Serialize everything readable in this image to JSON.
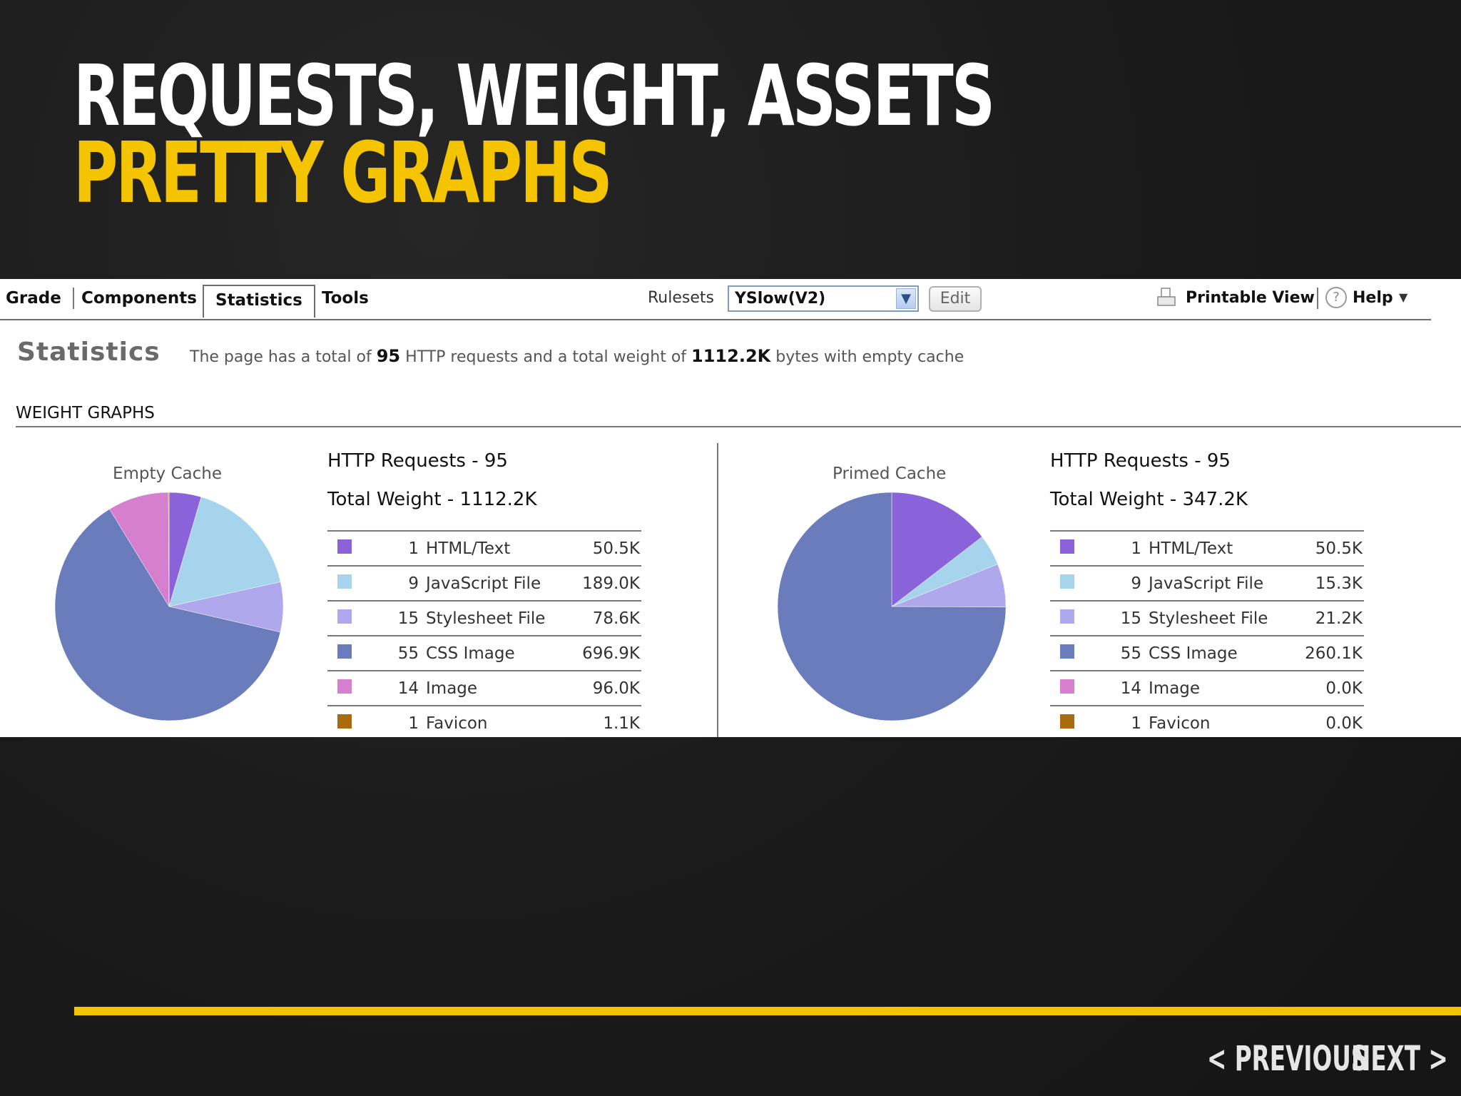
{
  "slide": {
    "title_line1": "REQUESTS, WEIGHT, ASSETS",
    "title_line2": "PRETTY GRAPHS",
    "accent_color": "#f5c400",
    "nav_previous": "PREVIOUS",
    "nav_next": "NEXT"
  },
  "tabs": [
    {
      "label": "Grade",
      "active": false
    },
    {
      "label": "Components",
      "active": false
    },
    {
      "label": "Statistics",
      "active": true
    },
    {
      "label": "Tools",
      "active": false
    }
  ],
  "toolbar": {
    "rulesets_label": "Rulesets",
    "ruleset_value": "YSlow(V2)",
    "edit_label": "Edit",
    "printable_view": "Printable View",
    "help": "Help"
  },
  "statistics": {
    "heading": "Statistics",
    "summary_prefix": "The page has a total of",
    "requests": "95",
    "summary_mid": "HTTP requests and a total weight of",
    "weight": "1112.2K",
    "summary_suffix": "bytes with empty cache",
    "section": "WEIGHT GRAPHS"
  },
  "chart_data": [
    {
      "type": "pie",
      "title": "Empty Cache",
      "http_requests_label": "HTTP Requests - 95",
      "total_weight_label": "Total Weight - 1112.2K",
      "rows": [
        {
          "count": "1",
          "name": "HTML/Text",
          "value": "50.5K",
          "kb": 50.5,
          "color": "#8a63db"
        },
        {
          "count": "9",
          "name": "JavaScript File",
          "value": "189.0K",
          "kb": 189.0,
          "color": "#a6d4ec"
        },
        {
          "count": "15",
          "name": "Stylesheet File",
          "value": "78.6K",
          "kb": 78.6,
          "color": "#b0a8ec"
        },
        {
          "count": "55",
          "name": "CSS Image",
          "value": "696.9K",
          "kb": 696.9,
          "color": "#6a7cbc"
        },
        {
          "count": "14",
          "name": "Image",
          "value": "96.0K",
          "kb": 96.0,
          "color": "#d67fce"
        },
        {
          "count": "1",
          "name": "Favicon",
          "value": "1.1K",
          "kb": 1.1,
          "color": "#a86b0e"
        }
      ]
    },
    {
      "type": "pie",
      "title": "Primed Cache",
      "http_requests_label": "HTTP Requests - 95",
      "total_weight_label": "Total Weight - 347.2K",
      "rows": [
        {
          "count": "1",
          "name": "HTML/Text",
          "value": "50.5K",
          "kb": 50.5,
          "color": "#8a63db"
        },
        {
          "count": "9",
          "name": "JavaScript File",
          "value": "15.3K",
          "kb": 15.3,
          "color": "#a6d4ec"
        },
        {
          "count": "15",
          "name": "Stylesheet File",
          "value": "21.2K",
          "kb": 21.2,
          "color": "#b0a8ec"
        },
        {
          "count": "55",
          "name": "CSS Image",
          "value": "260.1K",
          "kb": 260.1,
          "color": "#6a7cbc"
        },
        {
          "count": "14",
          "name": "Image",
          "value": "0.0K",
          "kb": 0.0,
          "color": "#d67fce"
        },
        {
          "count": "1",
          "name": "Favicon",
          "value": "0.0K",
          "kb": 0.0,
          "color": "#a86b0e"
        }
      ]
    }
  ]
}
